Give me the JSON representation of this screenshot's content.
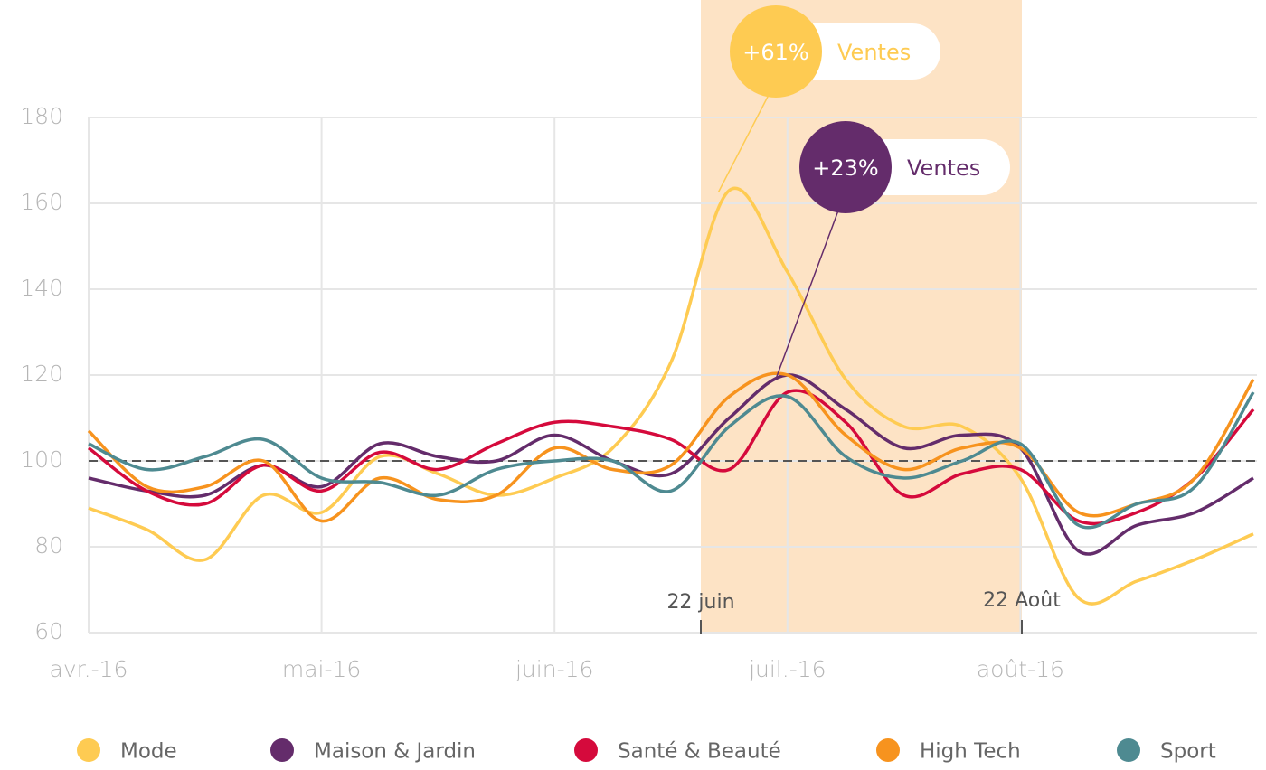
{
  "chart_data": {
    "type": "line",
    "categories": [
      "avr.-16",
      null,
      null,
      null,
      "mai-16",
      null,
      null,
      null,
      "juin-16",
      null,
      null,
      null,
      "juil.-16",
      null,
      null,
      null,
      "août-16",
      null,
      null,
      null,
      null
    ],
    "series": [
      {
        "name": "Mode",
        "color": "#fecb52",
        "values": [
          89,
          84,
          77,
          92,
          88,
          101,
          97,
          92,
          96,
          103,
          123,
          163,
          144,
          119,
          108,
          108,
          96,
          68,
          72,
          77,
          83
        ]
      },
      {
        "name": "Maison & Jardin",
        "color": "#642c6b",
        "values": [
          96,
          93,
          92,
          99,
          94,
          104,
          101,
          100,
          106,
          100,
          97,
          110,
          120,
          112,
          103,
          106,
          103,
          79,
          85,
          88,
          96
        ]
      },
      {
        "name": "Santé & Beauté",
        "color": "#d50a3c",
        "values": [
          103,
          93,
          90,
          99,
          93,
          102,
          98,
          104,
          109,
          108,
          105,
          98,
          116,
          109,
          92,
          97,
          98,
          86,
          88,
          96,
          112
        ]
      },
      {
        "name": "High Tech",
        "color": "#f7931e",
        "values": [
          107,
          94,
          94,
          100,
          86,
          96,
          91,
          92,
          103,
          98,
          99,
          115,
          120,
          106,
          98,
          103,
          103,
          88,
          90,
          96,
          119
        ]
      },
      {
        "name": "Sport",
        "color": "#4e8a91",
        "values": [
          104,
          98,
          101,
          105,
          96,
          95,
          92,
          98,
          100,
          100,
          93,
          108,
          115,
          101,
          96,
          100,
          104,
          85,
          90,
          94,
          116
        ]
      }
    ],
    "ylim": [
      60,
      180
    ],
    "yticks": [
      60,
      80,
      100,
      120,
      140,
      160,
      180
    ],
    "reference_line": 100,
    "grid": true,
    "highlight": {
      "start_label": "22 juin",
      "end_label": "22 Août",
      "color": "#fde3c5"
    },
    "annotations": [
      {
        "value": "+61%",
        "text": "Ventes",
        "series": 0,
        "color": "#fecb52"
      },
      {
        "value": "+23%",
        "text": "Ventes",
        "series": 1,
        "color": "#642c6b"
      }
    ],
    "legend": "bottom"
  }
}
